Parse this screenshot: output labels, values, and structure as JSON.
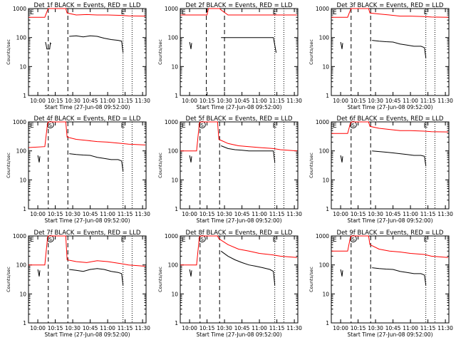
{
  "chart_data": {
    "type": "line",
    "x_tick_labels": [
      "10:00",
      "10:15",
      "10:30",
      "10:45",
      "11:00",
      "11:15",
      "11:30"
    ],
    "x_tick_hours": [
      10.0,
      10.25,
      10.5,
      10.75,
      11.0,
      11.25,
      11.5
    ],
    "xlim_hours": [
      9.8667,
      11.55
    ],
    "xlabel": "Start Time (27-Jun-08 09:52:00)",
    "ylabel": "Counts/sec",
    "yscale": "log",
    "ylim": [
      1,
      1000
    ],
    "y_tick_labels": [
      "1",
      "10",
      "100",
      "1000"
    ],
    "series_colors": {
      "events": "#000000",
      "lld": "#ff0000"
    },
    "marker_colors": {
      "dashed": "#000000",
      "dotted": "#000000"
    },
    "panels": [
      {
        "title": "Det 1f BLACK = Events, RED = LLD",
        "events": [
          [
            10.11,
            70
          ],
          [
            10.12,
            55
          ],
          [
            10.13,
            40
          ],
          [
            10.17,
            40
          ],
          [
            10.18,
            65
          ],
          [
            10.19,
            60
          ],
          [
            10.45,
            110
          ],
          [
            10.55,
            115
          ],
          [
            10.65,
            105
          ],
          [
            10.75,
            115
          ],
          [
            10.85,
            110
          ],
          [
            10.95,
            95
          ],
          [
            11.05,
            85
          ],
          [
            11.15,
            80
          ],
          [
            11.2,
            75
          ],
          [
            11.22,
            30
          ]
        ],
        "lld": [
          [
            9.87,
            500
          ],
          [
            10.1,
            500
          ],
          [
            10.14,
            900
          ],
          [
            10.15,
            1000
          ],
          [
            10.4,
            1000
          ],
          [
            10.42,
            700
          ],
          [
            10.55,
            600
          ],
          [
            10.7,
            620
          ],
          [
            10.85,
            600
          ],
          [
            11.0,
            600
          ],
          [
            11.2,
            580
          ],
          [
            11.3,
            560
          ],
          [
            11.54,
            550
          ]
        ],
        "markers": {
          "dashed": [
            10.15,
            10.43
          ],
          "dotted": [
            11.22,
            11.35
          ]
        },
        "annotations": {
          "left": "E",
          "mid": "",
          "right": "E"
        }
      },
      {
        "title": "Det 2f BLACK = Events, RED = LLD",
        "events": [
          [
            10.0,
            70
          ],
          [
            10.01,
            55
          ],
          [
            10.02,
            40
          ],
          [
            10.03,
            65
          ],
          [
            10.45,
            100
          ],
          [
            10.55,
            100
          ],
          [
            10.65,
            100
          ],
          [
            10.75,
            100
          ],
          [
            10.85,
            100
          ],
          [
            10.95,
            100
          ],
          [
            11.05,
            100
          ],
          [
            11.15,
            100
          ],
          [
            11.2,
            100
          ],
          [
            11.24,
            30
          ]
        ],
        "lld": [
          [
            9.87,
            600
          ],
          [
            10.25,
            600
          ],
          [
            10.27,
            1000
          ],
          [
            10.35,
            1000
          ],
          [
            10.43,
            1000
          ],
          [
            10.45,
            900
          ],
          [
            10.55,
            600
          ],
          [
            10.7,
            600
          ],
          [
            10.85,
            600
          ],
          [
            11.0,
            600
          ],
          [
            11.2,
            600
          ],
          [
            11.3,
            600
          ],
          [
            11.54,
            600
          ]
        ],
        "markers": {
          "dashed": [
            10.24,
            10.5
          ],
          "dotted": [
            11.22,
            11.35
          ]
        },
        "annotations": {
          "left": "E",
          "mid": "",
          "right": "E"
        }
      },
      {
        "title": "Det 3f BLACK = Events, RED = LLD",
        "events": [
          [
            10.0,
            70
          ],
          [
            10.01,
            55
          ],
          [
            10.02,
            40
          ],
          [
            10.03,
            65
          ],
          [
            10.45,
            80
          ],
          [
            10.55,
            75
          ],
          [
            10.65,
            72
          ],
          [
            10.75,
            70
          ],
          [
            10.85,
            60
          ],
          [
            10.95,
            55
          ],
          [
            11.05,
            50
          ],
          [
            11.15,
            50
          ],
          [
            11.2,
            45
          ],
          [
            11.22,
            20
          ]
        ],
        "lld": [
          [
            9.87,
            500
          ],
          [
            10.1,
            500
          ],
          [
            10.14,
            900
          ],
          [
            10.15,
            1000
          ],
          [
            10.4,
            1000
          ],
          [
            10.42,
            700
          ],
          [
            10.55,
            650
          ],
          [
            10.7,
            600
          ],
          [
            10.85,
            550
          ],
          [
            11.0,
            550
          ],
          [
            11.2,
            530
          ],
          [
            11.3,
            510
          ],
          [
            11.54,
            500
          ]
        ],
        "markers": {
          "dashed": [
            10.15,
            10.43
          ],
          "dotted": [
            11.22,
            11.35
          ]
        },
        "annotations": {
          "left": "E",
          "mid": "",
          "right": "E"
        }
      },
      {
        "title": "Det 4f BLACK = Events, RED = LLD",
        "events": [
          [
            10.0,
            70
          ],
          [
            10.01,
            55
          ],
          [
            10.02,
            40
          ],
          [
            10.03,
            65
          ],
          [
            10.45,
            80
          ],
          [
            10.55,
            75
          ],
          [
            10.65,
            72
          ],
          [
            10.75,
            70
          ],
          [
            10.85,
            60
          ],
          [
            10.95,
            55
          ],
          [
            11.05,
            50
          ],
          [
            11.15,
            50
          ],
          [
            11.2,
            45
          ],
          [
            11.22,
            20
          ]
        ],
        "lld": [
          [
            9.87,
            130
          ],
          [
            10.1,
            140
          ],
          [
            10.14,
            900
          ],
          [
            10.15,
            1000
          ],
          [
            10.4,
            1000
          ],
          [
            10.42,
            300
          ],
          [
            10.55,
            250
          ],
          [
            10.7,
            230
          ],
          [
            10.85,
            210
          ],
          [
            11.0,
            200
          ],
          [
            11.2,
            180
          ],
          [
            11.3,
            170
          ],
          [
            11.54,
            160
          ]
        ],
        "markers": {
          "dashed": [
            10.15,
            10.43
          ],
          "dotted": [
            11.22,
            11.35
          ]
        },
        "annotations": {
          "left": "E",
          "mid": "S",
          "right": "E"
        }
      },
      {
        "title": "Det 5f BLACK = Events, RED = LLD",
        "events": [
          [
            10.0,
            70
          ],
          [
            10.01,
            55
          ],
          [
            10.02,
            40
          ],
          [
            10.03,
            65
          ],
          [
            10.45,
            150
          ],
          [
            10.55,
            120
          ],
          [
            10.65,
            110
          ],
          [
            10.75,
            105
          ],
          [
            10.85,
            100
          ],
          [
            10.95,
            100
          ],
          [
            11.05,
            100
          ],
          [
            11.15,
            100
          ],
          [
            11.2,
            100
          ],
          [
            11.22,
            40
          ]
        ],
        "lld": [
          [
            9.87,
            100
          ],
          [
            10.1,
            100
          ],
          [
            10.14,
            900
          ],
          [
            10.15,
            1000
          ],
          [
            10.4,
            1000
          ],
          [
            10.42,
            250
          ],
          [
            10.55,
            180
          ],
          [
            10.7,
            150
          ],
          [
            10.85,
            140
          ],
          [
            11.0,
            130
          ],
          [
            11.2,
            120
          ],
          [
            11.3,
            110
          ],
          [
            11.54,
            100
          ]
        ],
        "markers": {
          "dashed": [
            10.15,
            10.43
          ],
          "dotted": [
            11.22,
            11.35
          ]
        },
        "annotations": {
          "left": "E",
          "mid": "S",
          "right": "E"
        }
      },
      {
        "title": "Det 6f BLACK = Events, RED = LLD",
        "events": [
          [
            10.0,
            70
          ],
          [
            10.01,
            55
          ],
          [
            10.02,
            40
          ],
          [
            10.03,
            65
          ],
          [
            10.45,
            100
          ],
          [
            10.55,
            95
          ],
          [
            10.65,
            90
          ],
          [
            10.75,
            85
          ],
          [
            10.85,
            80
          ],
          [
            10.95,
            75
          ],
          [
            11.05,
            70
          ],
          [
            11.15,
            70
          ],
          [
            11.2,
            65
          ],
          [
            11.22,
            30
          ]
        ],
        "lld": [
          [
            9.87,
            400
          ],
          [
            10.1,
            400
          ],
          [
            10.14,
            900
          ],
          [
            10.15,
            1000
          ],
          [
            10.4,
            1000
          ],
          [
            10.42,
            700
          ],
          [
            10.55,
            600
          ],
          [
            10.7,
            550
          ],
          [
            10.85,
            500
          ],
          [
            11.0,
            500
          ],
          [
            11.2,
            480
          ],
          [
            11.3,
            460
          ],
          [
            11.54,
            450
          ]
        ],
        "markers": {
          "dashed": [
            10.15,
            10.43
          ],
          "dotted": [
            11.22,
            11.35
          ]
        },
        "annotations": {
          "left": "E",
          "mid": "S",
          "right": "E"
        }
      },
      {
        "title": "Det 7f BLACK = Events, RED = LLD",
        "events": [
          [
            10.0,
            70
          ],
          [
            10.01,
            55
          ],
          [
            10.02,
            40
          ],
          [
            10.03,
            65
          ],
          [
            10.45,
            70
          ],
          [
            10.55,
            65
          ],
          [
            10.65,
            60
          ],
          [
            10.75,
            70
          ],
          [
            10.85,
            75
          ],
          [
            10.95,
            70
          ],
          [
            11.05,
            60
          ],
          [
            11.15,
            55
          ],
          [
            11.2,
            50
          ],
          [
            11.22,
            20
          ]
        ],
        "lld": [
          [
            9.87,
            100
          ],
          [
            10.1,
            100
          ],
          [
            10.14,
            900
          ],
          [
            10.15,
            1000
          ],
          [
            10.4,
            1000
          ],
          [
            10.42,
            150
          ],
          [
            10.55,
            130
          ],
          [
            10.7,
            120
          ],
          [
            10.85,
            140
          ],
          [
            11.0,
            130
          ],
          [
            11.2,
            110
          ],
          [
            11.3,
            100
          ],
          [
            11.54,
            90
          ]
        ],
        "markers": {
          "dashed": [
            10.15,
            10.43
          ],
          "dotted": [
            11.22,
            11.35
          ]
        },
        "annotations": {
          "left": "E",
          "mid": "S",
          "right": "E"
        }
      },
      {
        "title": "Det 8f BLACK = Events, RED = LLD",
        "events": [
          [
            10.0,
            70
          ],
          [
            10.01,
            55
          ],
          [
            10.02,
            40
          ],
          [
            10.03,
            65
          ],
          [
            10.45,
            300
          ],
          [
            10.55,
            200
          ],
          [
            10.65,
            150
          ],
          [
            10.75,
            120
          ],
          [
            10.85,
            100
          ],
          [
            10.95,
            90
          ],
          [
            11.05,
            80
          ],
          [
            11.15,
            70
          ],
          [
            11.2,
            60
          ],
          [
            11.22,
            20
          ]
        ],
        "lld": [
          [
            9.87,
            100
          ],
          [
            10.1,
            100
          ],
          [
            10.14,
            900
          ],
          [
            10.15,
            1000
          ],
          [
            10.4,
            1000
          ],
          [
            10.42,
            800
          ],
          [
            10.55,
            500
          ],
          [
            10.7,
            350
          ],
          [
            10.85,
            300
          ],
          [
            11.0,
            250
          ],
          [
            11.2,
            220
          ],
          [
            11.3,
            200
          ],
          [
            11.54,
            180
          ]
        ],
        "markers": {
          "dashed": [
            10.15,
            10.43
          ],
          "dotted": [
            11.22,
            11.35
          ]
        },
        "annotations": {
          "left": "E",
          "mid": "S",
          "right": "E"
        }
      },
      {
        "title": "Det 9f BLACK = Events, RED = LLD",
        "events": [
          [
            10.0,
            70
          ],
          [
            10.01,
            55
          ],
          [
            10.02,
            40
          ],
          [
            10.03,
            65
          ],
          [
            10.45,
            80
          ],
          [
            10.55,
            75
          ],
          [
            10.65,
            72
          ],
          [
            10.75,
            70
          ],
          [
            10.85,
            60
          ],
          [
            10.95,
            55
          ],
          [
            11.05,
            50
          ],
          [
            11.15,
            50
          ],
          [
            11.2,
            45
          ],
          [
            11.22,
            20
          ]
        ],
        "lld": [
          [
            9.87,
            300
          ],
          [
            10.1,
            300
          ],
          [
            10.14,
            900
          ],
          [
            10.15,
            1000
          ],
          [
            10.4,
            1000
          ],
          [
            10.42,
            500
          ],
          [
            10.55,
            350
          ],
          [
            10.7,
            300
          ],
          [
            10.85,
            280
          ],
          [
            11.0,
            250
          ],
          [
            11.2,
            230
          ],
          [
            11.3,
            200
          ],
          [
            11.54,
            180
          ]
        ],
        "markers": {
          "dashed": [
            10.15,
            10.43
          ],
          "dotted": [
            11.22,
            11.35
          ]
        },
        "annotations": {
          "left": "E",
          "mid": "S",
          "right": "E"
        }
      }
    ]
  }
}
